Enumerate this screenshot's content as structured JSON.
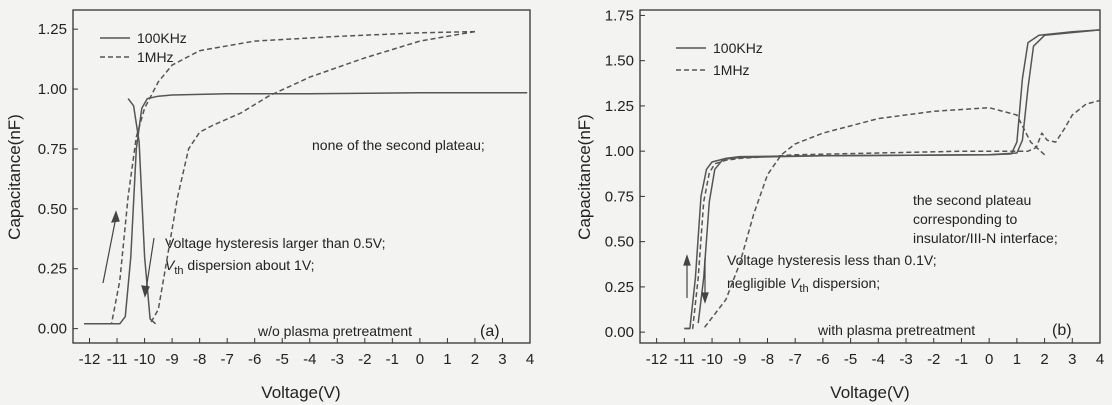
{
  "chart_data": [
    {
      "type": "line",
      "xlabel": "Voltage(V)",
      "ylabel": "Capacitance(nF)",
      "xlim": [
        -12.6,
        4
      ],
      "ylim": [
        -0.06,
        1.33
      ],
      "xticks": [
        -12,
        -11,
        -10,
        -9,
        -8,
        -7,
        -6,
        -5,
        -4,
        -3,
        -2,
        -1,
        0,
        1,
        2,
        3,
        4
      ],
      "yticks": [
        0.0,
        0.25,
        0.5,
        0.75,
        1.0,
        1.25
      ],
      "ytick_labels": [
        "0.00",
        "0.25",
        "0.50",
        "0.75",
        "1.00",
        "1.25"
      ],
      "legend": {
        "position": "top-left",
        "entries": [
          {
            "label": "100KHz",
            "style": "solid"
          },
          {
            "label": "1MHz",
            "style": "dashed"
          }
        ]
      },
      "panel_label": "(a)",
      "annotations": {
        "plateau": "none of the second plateau;",
        "hysteresis_line1": "Voltage hysteresis larger than 0.5V;",
        "vth_sym": "V",
        "vth_sub": "th",
        "vth_rest": " dispersion about 1V;",
        "pretreatment": "w/o plasma pretreatment"
      },
      "series": [
        {
          "name": "100KHz",
          "style": "solid",
          "points": [
            [
              -12.2,
              0.02
            ],
            [
              -10.9,
              0.02
            ],
            [
              -10.7,
              0.05
            ],
            [
              -10.5,
              0.3
            ],
            [
              -10.3,
              0.75
            ],
            [
              -10.1,
              0.92
            ],
            [
              -9.9,
              0.96
            ],
            [
              -9.5,
              0.97
            ],
            [
              -9.0,
              0.975
            ],
            [
              -7.0,
              0.98
            ],
            [
              -4.0,
              0.98
            ],
            [
              0.0,
              0.985
            ],
            [
              3.9,
              0.985
            ]
          ]
        },
        {
          "name": "100KHz",
          "style": "solid",
          "points": [
            [
              -9.6,
              0.02
            ],
            [
              -9.8,
              0.04
            ],
            [
              -10.0,
              0.3
            ],
            [
              -10.2,
              0.78
            ],
            [
              -10.4,
              0.93
            ],
            [
              -10.6,
              0.96
            ]
          ]
        },
        {
          "name": "1MHz",
          "style": "dashed",
          "points": [
            [
              -12.2,
              0.02
            ],
            [
              -11.2,
              0.02
            ],
            [
              -10.9,
              0.2
            ],
            [
              -10.6,
              0.55
            ],
            [
              -10.3,
              0.8
            ],
            [
              -10.0,
              0.92
            ],
            [
              -9.5,
              1.03
            ],
            [
              -9.0,
              1.1
            ],
            [
              -8.0,
              1.16
            ],
            [
              -6.0,
              1.2
            ],
            [
              -3.0,
              1.22
            ],
            [
              0.0,
              1.235
            ],
            [
              2.0,
              1.24
            ]
          ]
        },
        {
          "name": "1MHz",
          "style": "dashed",
          "points": [
            [
              2.0,
              1.24
            ],
            [
              0.0,
              1.2
            ],
            [
              -2.0,
              1.13
            ],
            [
              -4.0,
              1.05
            ],
            [
              -5.5,
              0.97
            ],
            [
              -6.5,
              0.9
            ],
            [
              -7.5,
              0.85
            ],
            [
              -8.0,
              0.82
            ],
            [
              -8.4,
              0.75
            ],
            [
              -8.8,
              0.55
            ],
            [
              -9.2,
              0.28
            ],
            [
              -9.5,
              0.08
            ],
            [
              -9.8,
              0.02
            ]
          ]
        }
      ]
    },
    {
      "type": "line",
      "xlabel": "Voltage(V)",
      "ylabel": "Capacitance(nF)",
      "xlim": [
        -12.6,
        4
      ],
      "ylim": [
        -0.06,
        1.78
      ],
      "xticks": [
        -12,
        -11,
        -10,
        -9,
        -8,
        -7,
        -6,
        -5,
        -4,
        -3,
        -2,
        -1,
        0,
        1,
        2,
        3,
        4
      ],
      "yticks": [
        0.0,
        0.25,
        0.5,
        0.75,
        1.0,
        1.25,
        1.5,
        1.75
      ],
      "ytick_labels": [
        "0.00",
        "0.25",
        "0.50",
        "0.75",
        "1.00",
        "1.25",
        "1.50",
        "1.75"
      ],
      "legend": {
        "position": "top-left",
        "entries": [
          {
            "label": "100KHz",
            "style": "solid"
          },
          {
            "label": "1MHz",
            "style": "dashed"
          }
        ]
      },
      "panel_label": "(b)",
      "annotations": {
        "plateau_line1": "the second plateau",
        "plateau_line2": "corresponding to",
        "plateau_line3": "insulator/III-N interface;",
        "hysteresis_line1": "Voltage hysteresis less than 0.1V;",
        "vth_prefix": "negligible ",
        "vth_sym": "V",
        "vth_sub": "th",
        "vth_rest": " dispersion;",
        "pretreatment": "with plasma pretreatment"
      },
      "series": [
        {
          "name": "100KHz",
          "style": "solid",
          "points": [
            [
              -11.0,
              0.02
            ],
            [
              -10.8,
              0.02
            ],
            [
              -10.6,
              0.3
            ],
            [
              -10.4,
              0.75
            ],
            [
              -10.2,
              0.9
            ],
            [
              -10.0,
              0.94
            ],
            [
              -9.5,
              0.96
            ],
            [
              -9.0,
              0.97
            ],
            [
              -6.0,
              0.975
            ],
            [
              0.0,
              0.98
            ],
            [
              0.8,
              0.985
            ],
            [
              1.0,
              1.05
            ],
            [
              1.2,
              1.4
            ],
            [
              1.4,
              1.6
            ],
            [
              1.8,
              1.64
            ],
            [
              3.0,
              1.66
            ],
            [
              4.0,
              1.67
            ]
          ]
        },
        {
          "name": "100KHz",
          "style": "solid",
          "points": [
            [
              4.0,
              1.67
            ],
            [
              2.0,
              1.64
            ],
            [
              1.6,
              1.58
            ],
            [
              1.4,
              1.35
            ],
            [
              1.2,
              1.06
            ],
            [
              1.0,
              0.99
            ],
            [
              0.0,
              0.98
            ],
            [
              -6.0,
              0.975
            ],
            [
              -9.0,
              0.965
            ],
            [
              -9.6,
              0.955
            ],
            [
              -9.9,
              0.9
            ],
            [
              -10.1,
              0.72
            ],
            [
              -10.3,
              0.3
            ],
            [
              -10.5,
              0.05
            ]
          ]
        },
        {
          "name": "1MHz",
          "style": "dashed",
          "points": [
            [
              -11.0,
              0.02
            ],
            [
              -10.7,
              0.02
            ],
            [
              -10.5,
              0.3
            ],
            [
              -10.3,
              0.72
            ],
            [
              -10.1,
              0.88
            ],
            [
              -9.9,
              0.93
            ],
            [
              -9.5,
              0.95
            ],
            [
              -9.0,
              0.96
            ],
            [
              -7.0,
              0.98
            ],
            [
              -4.0,
              0.99
            ],
            [
              -1.0,
              1.0
            ],
            [
              1.4,
              1.0
            ],
            [
              1.7,
              1.02
            ],
            [
              1.9,
              1.1
            ],
            [
              2.1,
              1.06
            ],
            [
              2.4,
              1.05
            ],
            [
              2.7,
              1.12
            ],
            [
              3.0,
              1.2
            ],
            [
              3.5,
              1.26
            ],
            [
              4.0,
              1.28
            ]
          ]
        },
        {
          "name": "1MHz",
          "style": "dashed",
          "points": [
            [
              2.0,
              0.98
            ],
            [
              1.5,
              1.05
            ],
            [
              1.0,
              1.2
            ],
            [
              0.0,
              1.24
            ],
            [
              -2.0,
              1.22
            ],
            [
              -4.0,
              1.18
            ],
            [
              -6.0,
              1.1
            ],
            [
              -7.0,
              1.04
            ],
            [
              -7.5,
              0.98
            ],
            [
              -8.0,
              0.87
            ],
            [
              -8.5,
              0.65
            ],
            [
              -9.0,
              0.38
            ],
            [
              -9.5,
              0.18
            ],
            [
              -10.0,
              0.08
            ],
            [
              -10.3,
              0.02
            ]
          ]
        }
      ]
    }
  ]
}
